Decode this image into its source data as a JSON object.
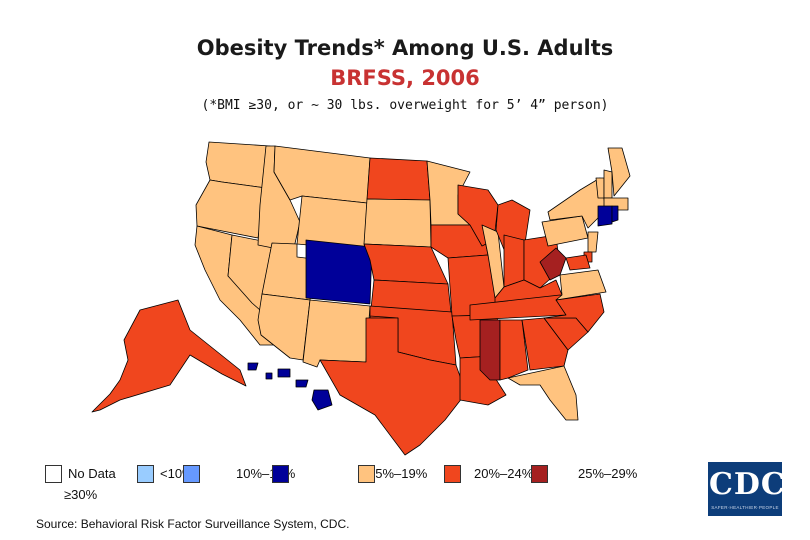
{
  "header": {
    "title": "Obesity Trends* Among U.S. Adults",
    "subtitle": "BRFSS, 2006",
    "note": "(*BMI ≥30, or ~ 30 lbs. overweight for 5’ 4” person)"
  },
  "colors": {
    "subtitle": "#c83232",
    "no_data": "#ffffff",
    "lt10": "#99ccff",
    "10_14": "#6699ff",
    "15_19": "#000099",
    "20_24": "#ffc37f",
    "25_29": "#f0461e",
    "ge30": "#a52020",
    "border": "#000000"
  },
  "legend": {
    "no_data": "No Data",
    "lt10": "<10%",
    "r10_14": "10%–14%",
    "r15_19": "15%–19%",
    "r20_24": "20%–24%",
    "r25_29": "25%–29%",
    "ge30": "≥30%"
  },
  "states": {
    "WA": "20_24",
    "OR": "20_24",
    "CA": "20_24",
    "NV": "20_24",
    "ID": "20_24",
    "MT": "20_24",
    "WY": "20_24",
    "UT": "20_24",
    "AZ": "20_24",
    "NM": "20_24",
    "CO": "15_19",
    "ND": "25_29",
    "SD": "20_24",
    "NE": "25_29",
    "KS": "25_29",
    "OK": "25_29",
    "TX": "25_29",
    "MN": "20_24",
    "IA": "25_29",
    "MO": "25_29",
    "AR": "25_29",
    "LA": "25_29",
    "WI": "25_29",
    "IL": "20_24",
    "MS": "ge30",
    "MI": "25_29",
    "IN": "25_29",
    "OH": "25_29",
    "KY": "25_29",
    "TN": "25_29",
    "AL": "25_29",
    "GA": "25_29",
    "FL": "20_24",
    "SC": "25_29",
    "NC": "25_29",
    "VA": "20_24",
    "WV": "ge30",
    "PA": "20_24",
    "NY": "20_24",
    "VT": "20_24",
    "NH": "20_24",
    "ME": "20_24",
    "MA": "20_24",
    "CT": "15_19",
    "RI": "15_19",
    "NJ": "20_24",
    "DE": "25_29",
    "MD": "25_29",
    "AK": "25_29",
    "HI": "15_19"
  },
  "source": "Source: Behavioral Risk Factor Surveillance System, CDC.",
  "logo": {
    "name": "CDC",
    "tagline": "SAFER·HEALTHIER·PEOPLE"
  }
}
